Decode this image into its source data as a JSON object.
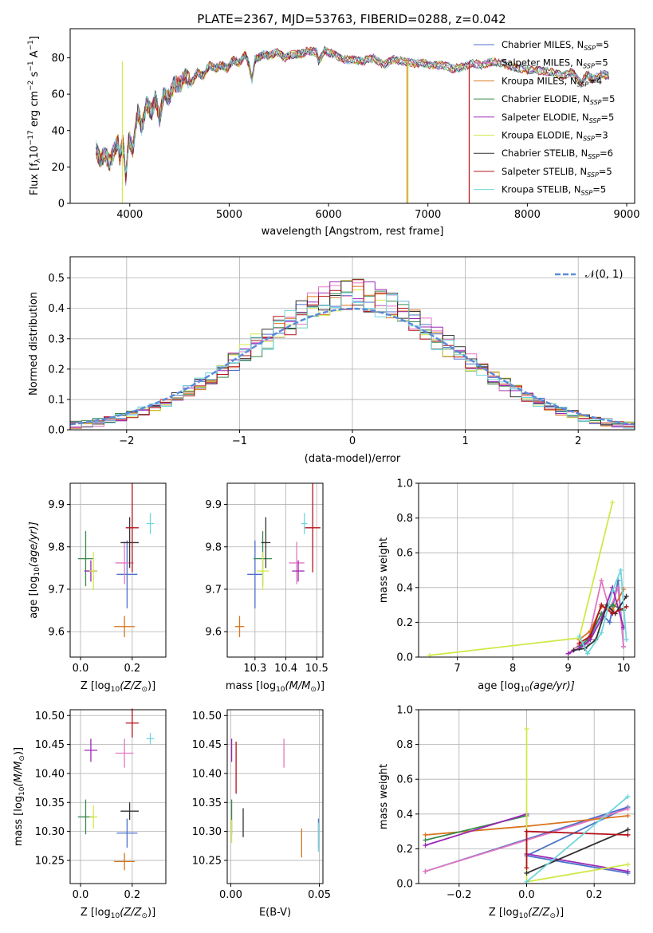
{
  "figure": {
    "title": "PLATE=2367, MJD=53763, FIBERID=0288, z=0.042"
  },
  "legend_models": [
    {
      "name": "Chabrier MILES",
      "nssp": "5",
      "color": "#4c72c9"
    },
    {
      "name": "Salpeter MILES",
      "nssp": "5",
      "color": "#e377c2"
    },
    {
      "name": "Kroupa MILES",
      "nssp": "4",
      "color": "#d9741c"
    },
    {
      "name": "Chabrier ELODIE",
      "nssp": "5",
      "color": "#3a8a4e"
    },
    {
      "name": "Salpeter ELODIE",
      "nssp": "5",
      "color": "#9b27b5"
    },
    {
      "name": "Kroupa ELODIE",
      "nssp": "3",
      "color": "#d2e84a"
    },
    {
      "name": "Chabrier STELIB",
      "nssp": "6",
      "color": "#333333"
    },
    {
      "name": "Salpeter STELIB",
      "nssp": "5",
      "color": "#b5121b"
    },
    {
      "name": "Kroupa STELIB",
      "nssp": "5",
      "color": "#6fd6dd"
    }
  ],
  "chart_data": [
    {
      "id": "spectrum",
      "type": "line",
      "xlabel": "wavelength [Angstrom, rest frame]",
      "ylabel_main": "Flux [f",
      "ylabel_sub": "λ",
      "ylabel_rest": "10",
      "ylabel_exp1": "−17",
      "ylabel_unit": " erg cm",
      "ylabel_exp2": "−2",
      "ylabel_unit2": " s",
      "ylabel_exp3": "−1",
      "ylabel_unit3": " A",
      "ylabel_exp4": "−1",
      "ylabel_end": "]",
      "xlim": [
        3400,
        9080
      ],
      "ylim": [
        0,
        96
      ],
      "xticks": [
        "4000",
        "5000",
        "6000",
        "7000",
        "8000",
        "9000"
      ],
      "yticks": [
        "0",
        "20",
        "40",
        "60",
        "80"
      ],
      "x": [
        3660,
        3700,
        3750,
        3800,
        3850,
        3880,
        3900,
        3930,
        3960,
        3990,
        4030,
        4080,
        4120,
        4170,
        4220,
        4260,
        4300,
        4340,
        4400,
        4450,
        4500,
        4560,
        4620,
        4680,
        4740,
        4800,
        4860,
        4920,
        4980,
        5040,
        5100,
        5160,
        5200,
        5230,
        5260,
        5300,
        5350,
        5400,
        5480,
        5560,
        5640,
        5720,
        5800,
        5880,
        5900,
        5960,
        6050,
        6150,
        6250,
        6350,
        6450,
        6560,
        6650,
        6750,
        6850,
        6950,
        7050,
        7150,
        7250,
        7350,
        7450,
        7550,
        7650,
        7750,
        7850,
        7950,
        8050,
        8150,
        8250,
        8350,
        8450,
        8540,
        8600,
        8660,
        8750,
        8830
      ],
      "flux": [
        30,
        24,
        27,
        22,
        30,
        34,
        24,
        35,
        14,
        36,
        30,
        50,
        42,
        55,
        50,
        58,
        46,
        60,
        58,
        66,
        65,
        70,
        66,
        72,
        70,
        76,
        74,
        76,
        74,
        79,
        77,
        82,
        76,
        68,
        79,
        80,
        82,
        81,
        83,
        80,
        82,
        82,
        84,
        83,
        78,
        84,
        82,
        79,
        79,
        78,
        80,
        76,
        79,
        78,
        77,
        77,
        76,
        76,
        74,
        75,
        77,
        76,
        78,
        77,
        75,
        74,
        73,
        73,
        72,
        70,
        72,
        66,
        71,
        68,
        71,
        70
      ],
      "drops": [
        {
          "x": 3925,
          "model": 5
        },
        {
          "x": 6790,
          "model": 2
        },
        {
          "x": 6800,
          "model": 5
        },
        {
          "x": 7415,
          "model": 7
        }
      ]
    },
    {
      "id": "residuals",
      "type": "line",
      "xlabel": "(data-model)/error",
      "ylabel": "Normed distribution",
      "legend_label": "𝒩(0, 1)",
      "xlim": [
        -2.5,
        2.5
      ],
      "ylim": [
        0,
        0.57
      ],
      "xticks": [
        "−2",
        "−1",
        "0",
        "1",
        "2"
      ],
      "xtick_values": [
        -2,
        -1,
        0,
        1,
        2
      ],
      "yticks": [
        "0.0",
        "0.1",
        "0.2",
        "0.3",
        "0.4",
        "0.5"
      ],
      "ytick_values": [
        0,
        0.1,
        0.2,
        0.3,
        0.4,
        0.5
      ],
      "bin_width": 0.1,
      "gaussian_color": "#5b8bd9"
    },
    {
      "id": "age_vs_Z",
      "type": "scatter",
      "xlabel": "Z [log",
      "xlabel_sub": "10",
      "xlabel_rest": "(Z/Z",
      "xlabel_sun": "⊙",
      "xlabel_end": ")]",
      "ylabel": "age  [log",
      "ylabel_sub": "10",
      "ylabel_rest": "(age/yr)]",
      "xlim": [
        -0.04,
        0.33
      ],
      "ylim": [
        9.54,
        9.95
      ],
      "xticks": [
        "0.0",
        "0.2"
      ],
      "xtick_values": [
        0,
        0.2
      ],
      "yticks": [
        "9.6",
        "9.7",
        "9.8",
        "9.9"
      ],
      "ytick_values": [
        9.6,
        9.7,
        9.8,
        9.9
      ],
      "points": [
        {
          "model": 0,
          "x": 0.18,
          "y": 9.735,
          "xerr": 0.08,
          "yerr": 0.16
        },
        {
          "model": 1,
          "x": 0.17,
          "y": 9.762,
          "xerr": 0.07,
          "yerr": 0.1
        },
        {
          "model": 2,
          "x": 0.17,
          "y": 9.612,
          "xerr": 0.08,
          "yerr": 0.05
        },
        {
          "model": 3,
          "x": 0.02,
          "y": 9.772,
          "xerr": 0.06,
          "yerr": 0.13
        },
        {
          "model": 4,
          "x": 0.04,
          "y": 9.743,
          "xerr": 0.05,
          "yerr": 0.05
        },
        {
          "model": 5,
          "x": 0.05,
          "y": 9.743,
          "xerr": 0.03,
          "yerr": 0.09
        },
        {
          "model": 6,
          "x": 0.19,
          "y": 9.81,
          "xerr": 0.07,
          "yerr": 0.12
        },
        {
          "model": 7,
          "x": 0.2,
          "y": 9.845,
          "xerr": 0.05,
          "yerr": 0.21
        },
        {
          "model": 8,
          "x": 0.27,
          "y": 9.855,
          "xerr": 0.03,
          "yerr": 0.05
        }
      ]
    },
    {
      "id": "age_vs_mass",
      "type": "scatter",
      "xlabel": "mass [log",
      "xlabel_sub": "10",
      "xlabel_rest": "(M/M",
      "xlabel_sun": "⊙",
      "xlabel_end": ")]",
      "xlim": [
        10.21,
        10.52
      ],
      "ylim": [
        9.54,
        9.95
      ],
      "xticks": [
        "10.3",
        "10.4",
        "10.5"
      ],
      "xtick_values": [
        10.3,
        10.4,
        10.5
      ],
      "yticks": [
        "9.6",
        "9.7",
        "9.8",
        "9.9"
      ],
      "ytick_values": [
        9.6,
        9.7,
        9.8,
        9.9
      ],
      "points": [
        {
          "model": 0,
          "x": 10.3,
          "y": 9.735,
          "xerr": 0.05,
          "yerr": 0.16
        },
        {
          "model": 1,
          "x": 10.435,
          "y": 9.762,
          "xerr": 0.05,
          "yerr": 0.1
        },
        {
          "model": 2,
          "x": 10.25,
          "y": 9.612,
          "xerr": 0.03,
          "yerr": 0.05
        },
        {
          "model": 3,
          "x": 10.325,
          "y": 9.772,
          "xerr": 0.06,
          "yerr": 0.13
        },
        {
          "model": 4,
          "x": 10.44,
          "y": 9.743,
          "xerr": 0.04,
          "yerr": 0.05
        },
        {
          "model": 5,
          "x": 10.325,
          "y": 9.743,
          "xerr": 0.04,
          "yerr": 0.09
        },
        {
          "model": 6,
          "x": 10.335,
          "y": 9.81,
          "xerr": 0.03,
          "yerr": 0.12
        },
        {
          "model": 7,
          "x": 10.487,
          "y": 9.845,
          "xerr": 0.05,
          "yerr": 0.21
        },
        {
          "model": 8,
          "x": 10.46,
          "y": 9.855,
          "xerr": 0.02,
          "yerr": 0.05
        }
      ]
    },
    {
      "id": "weight_vs_age",
      "type": "line",
      "xlabel": "age  [log",
      "xlabel_sub": "10",
      "xlabel_rest": "(age/yr)]",
      "ylabel": "mass weight",
      "xlim": [
        6.3,
        10.2
      ],
      "ylim": [
        0,
        1.0
      ],
      "xticks": [
        "7",
        "8",
        "9",
        "10"
      ],
      "xtick_values": [
        7,
        8,
        9,
        10
      ],
      "yticks": [
        "0.0",
        "0.2",
        "0.4",
        "0.6",
        "0.8",
        "1.0"
      ],
      "ytick_values": [
        0,
        0.2,
        0.4,
        0.6,
        0.8,
        1.0
      ],
      "series": [
        {
          "model": 0,
          "x": [
            9.0,
            9.2,
            9.35,
            9.6,
            9.75,
            9.9,
            10.0
          ],
          "y": [
            0.02,
            0.05,
            0.08,
            0.25,
            0.2,
            0.44,
            0.06
          ]
        },
        {
          "model": 1,
          "x": [
            9.0,
            9.2,
            9.35,
            9.6,
            9.75,
            9.9,
            10.0
          ],
          "y": [
            0.02,
            0.07,
            0.08,
            0.44,
            0.27,
            0.4,
            0.06
          ]
        },
        {
          "model": 2,
          "x": [
            9.2,
            9.4,
            9.6,
            9.8,
            10.0
          ],
          "y": [
            0.1,
            0.15,
            0.29,
            0.27,
            0.39
          ]
        },
        {
          "model": 3,
          "x": [
            9.2,
            9.35,
            9.6,
            9.8,
            10.0
          ],
          "y": [
            0.06,
            0.1,
            0.25,
            0.3,
            0.27
          ]
        },
        {
          "model": 4,
          "x": [
            9.0,
            9.2,
            9.4,
            9.6,
            9.8,
            10.0
          ],
          "y": [
            0.02,
            0.05,
            0.1,
            0.22,
            0.4,
            0.17
          ]
        },
        {
          "model": 5,
          "x": [
            6.5,
            9.2,
            9.8
          ],
          "y": [
            0.01,
            0.11,
            0.89
          ]
        },
        {
          "model": 6,
          "x": [
            9.1,
            9.3,
            9.5,
            9.7,
            9.85,
            10.05
          ],
          "y": [
            0.04,
            0.05,
            0.1,
            0.3,
            0.25,
            0.35
          ]
        },
        {
          "model": 7,
          "x": [
            9.2,
            9.4,
            9.6,
            9.8,
            10.05
          ],
          "y": [
            0.08,
            0.12,
            0.3,
            0.25,
            0.29
          ]
        },
        {
          "model": 8,
          "x": [
            9.2,
            9.35,
            9.6,
            9.8,
            9.95,
            10.05
          ],
          "y": [
            0.12,
            0.02,
            0.14,
            0.38,
            0.5,
            0.1
          ]
        }
      ]
    },
    {
      "id": "mass_vs_Z",
      "type": "scatter",
      "xlabel": "Z [log",
      "xlabel_sub": "10",
      "xlabel_rest": "(Z/Z",
      "xlabel_sun": "⊙",
      "xlabel_end": ")]",
      "ylabel": "mass [log",
      "ylabel_sub": "10",
      "ylabel_rest": "(M/M",
      "ylabel_sun": "⊙",
      "ylabel_end": ")]",
      "xlim": [
        -0.04,
        0.33
      ],
      "ylim": [
        10.21,
        10.51
      ],
      "xticks": [
        "0.0",
        "0.2"
      ],
      "xtick_values": [
        0,
        0.2
      ],
      "yticks": [
        "10.25",
        "10.30",
        "10.35",
        "10.40",
        "10.45",
        "10.50"
      ],
      "ytick_values": [
        10.25,
        10.3,
        10.35,
        10.4,
        10.45,
        10.5
      ],
      "points": [
        {
          "model": 0,
          "x": 0.18,
          "y": 10.297,
          "xerr": 0.08,
          "yerr": 0.05
        },
        {
          "model": 1,
          "x": 0.17,
          "y": 10.435,
          "xerr": 0.07,
          "yerr": 0.05
        },
        {
          "model": 2,
          "x": 0.17,
          "y": 10.248,
          "xerr": 0.08,
          "yerr": 0.03
        },
        {
          "model": 3,
          "x": 0.02,
          "y": 10.325,
          "xerr": 0.06,
          "yerr": 0.06
        },
        {
          "model": 4,
          "x": 0.04,
          "y": 10.44,
          "xerr": 0.05,
          "yerr": 0.04
        },
        {
          "model": 5,
          "x": 0.05,
          "y": 10.325,
          "xerr": 0.03,
          "yerr": 0.04
        },
        {
          "model": 6,
          "x": 0.19,
          "y": 10.335,
          "xerr": 0.07,
          "yerr": 0.03
        },
        {
          "model": 7,
          "x": 0.2,
          "y": 10.487,
          "xerr": 0.05,
          "yerr": 0.05
        },
        {
          "model": 8,
          "x": 0.27,
          "y": 10.46,
          "xerr": 0.03,
          "yerr": 0.02
        }
      ]
    },
    {
      "id": "mass_vs_ebv",
      "type": "scatter",
      "xlabel": "E(B-V)",
      "xlim": [
        -0.002,
        0.052
      ],
      "ylim": [
        10.21,
        10.51
      ],
      "xticks": [
        "0.00",
        "0.05"
      ],
      "xtick_values": [
        0,
        0.05
      ],
      "yticks": [
        "10.25",
        "10.30",
        "10.35",
        "10.40",
        "10.45",
        "10.50"
      ],
      "ytick_values": [
        10.25,
        10.3,
        10.35,
        10.4,
        10.45,
        10.5
      ],
      "points": [
        {
          "model": 0,
          "x": 0.0495,
          "y": 10.297,
          "xerr": 0,
          "yerr": 0.05
        },
        {
          "model": 1,
          "x": 0.03,
          "y": 10.435,
          "xerr": 0,
          "yerr": 0.05
        },
        {
          "model": 2,
          "x": 0.04,
          "y": 10.28,
          "xerr": 0,
          "yerr": 0.05
        },
        {
          "model": 3,
          "x": 0.0005,
          "y": 10.325,
          "xerr": 0,
          "yerr": 0.06
        },
        {
          "model": 4,
          "x": 0.0005,
          "y": 10.44,
          "xerr": 0,
          "yerr": 0.04
        },
        {
          "model": 5,
          "x": 0.0005,
          "y": 10.3,
          "xerr": 0,
          "yerr": 0.04
        },
        {
          "model": 6,
          "x": 0.007,
          "y": 10.315,
          "xerr": 0,
          "yerr": 0.05
        },
        {
          "model": 7,
          "x": 0.003,
          "y": 10.41,
          "xerr": 0,
          "yerr": 0.09
        },
        {
          "model": 8,
          "x": 0.0495,
          "y": 10.29,
          "xerr": 0,
          "yerr": 0.05
        }
      ]
    },
    {
      "id": "weight_vs_Z",
      "type": "line",
      "xlabel": "Z [log",
      "xlabel_sub": "10",
      "xlabel_rest": "(Z/Z",
      "xlabel_sun": "⊙",
      "xlabel_end": ")]",
      "ylabel": "mass weight",
      "xlim": [
        -0.32,
        0.32
      ],
      "ylim": [
        0,
        1.0
      ],
      "xticks": [
        "−0.2",
        "0.0",
        "0.2"
      ],
      "xtick_values": [
        -0.2,
        0,
        0.2
      ],
      "yticks": [
        "0.0",
        "0.2",
        "0.4",
        "0.6",
        "0.8",
        "1.0"
      ],
      "ytick_values": [
        0,
        0.2,
        0.4,
        0.6,
        0.8,
        1.0
      ],
      "series": [
        {
          "model": 0,
          "x": [
            -0.3,
            0.3,
            0.0,
            0.3
          ],
          "y": [
            0.07,
            0.44,
            0.16,
            0.06
          ]
        },
        {
          "model": 1,
          "x": [
            -0.3,
            0.3,
            -0.3
          ],
          "y": [
            0.07,
            0.43,
            0.07
          ]
        },
        {
          "model": 2,
          "x": [
            -0.3,
            0.0,
            0.3
          ],
          "y": [
            0.28,
            0.33,
            0.39
          ]
        },
        {
          "model": 3,
          "x": [
            -0.3,
            0.0
          ],
          "y": [
            0.25,
            0.39
          ]
        },
        {
          "model": 4,
          "x": [
            -0.3,
            0.0,
            0.0,
            0.3
          ],
          "y": [
            0.22,
            0.4,
            0.17,
            0.07
          ]
        },
        {
          "model": 5,
          "x": [
            0.0,
            0.0,
            0.3
          ],
          "y": [
            0.89,
            0.01,
            0.11
          ]
        },
        {
          "model": 6,
          "x": [
            0.0,
            0.3
          ],
          "y": [
            0.06,
            0.31
          ]
        },
        {
          "model": 7,
          "x": [
            0.0,
            0.0,
            0.3
          ],
          "y": [
            0.09,
            0.3,
            0.28
          ]
        },
        {
          "model": 8,
          "x": [
            0.0,
            0.3
          ],
          "y": [
            0.01,
            0.5
          ]
        }
      ]
    }
  ]
}
